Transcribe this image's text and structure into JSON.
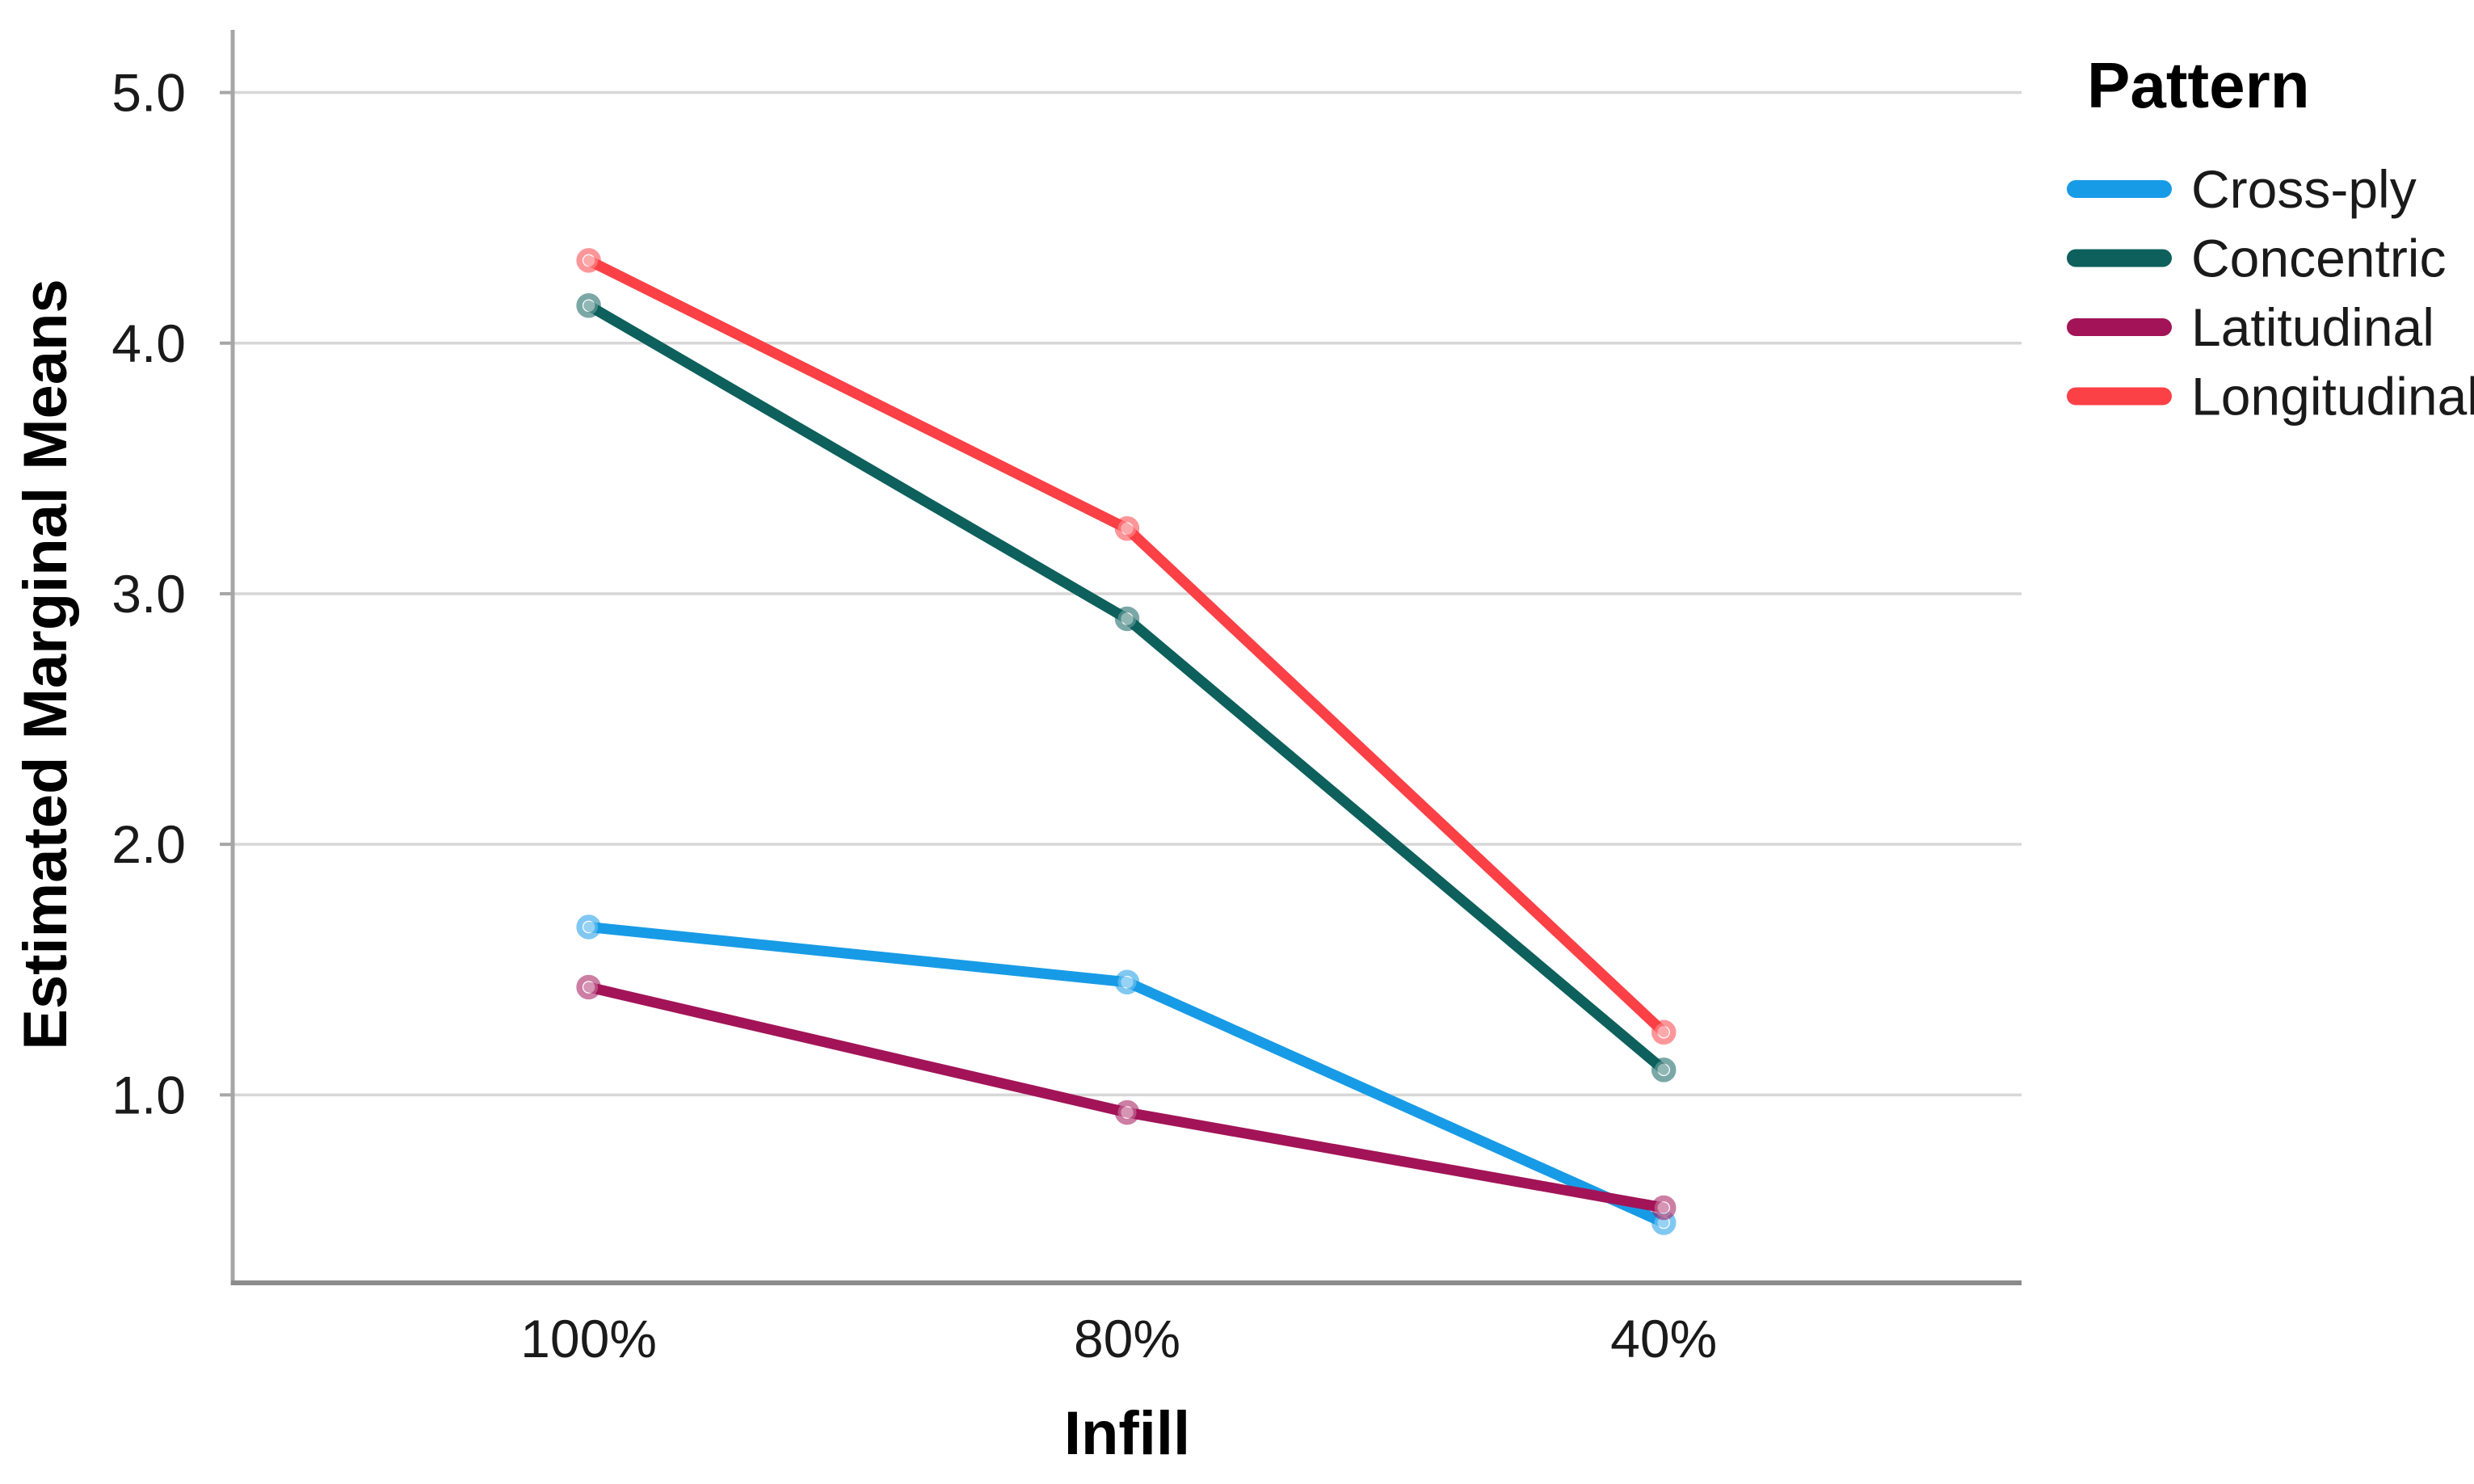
{
  "chart_data": {
    "type": "line",
    "xlabel": "Infill",
    "ylabel": "Estimated Marginal Means",
    "legend_title": "Pattern",
    "legend_position": "right",
    "grid": "horizontal",
    "categories": [
      "100%",
      "80%",
      "40%"
    ],
    "yticks": [
      1.0,
      2.0,
      3.0,
      4.0,
      5.0
    ],
    "ytick_labels": [
      "1.0",
      "2.0",
      "3.0",
      "4.0",
      "5.0"
    ],
    "ylim": [
      0.25,
      5.25
    ],
    "series": [
      {
        "name": "Cross-ply",
        "color": "#189BE6",
        "values": [
          1.67,
          1.45,
          0.49
        ]
      },
      {
        "name": "Concentric",
        "color": "#0D605C",
        "values": [
          4.15,
          2.9,
          1.1
        ]
      },
      {
        "name": "Latitudinal",
        "color": "#A21457",
        "values": [
          1.43,
          0.93,
          0.55
        ]
      },
      {
        "name": "Longitudinal",
        "color": "#FB4046",
        "values": [
          4.33,
          3.26,
          1.25
        ]
      }
    ]
  },
  "colors": {
    "gridline": "#d7d7d7",
    "y_axis_line": "#a6a6a6",
    "x_axis_line": "#8c8c8c",
    "tick_text": "#1a1a1a",
    "title_text": "#000000",
    "background": "#ffffff"
  }
}
